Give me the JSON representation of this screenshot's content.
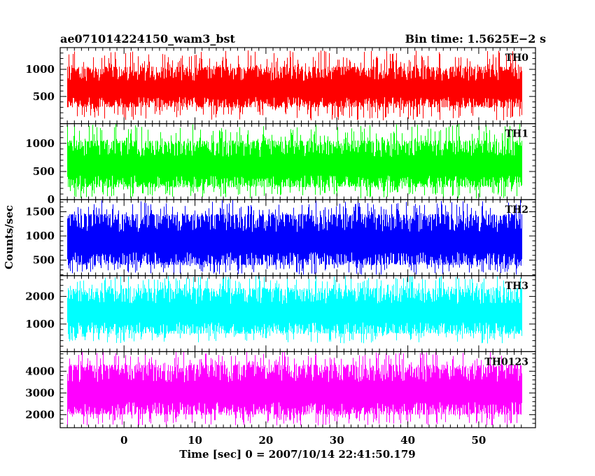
{
  "header": {
    "left_title": "ae071014224150_wam3_bst",
    "right_title": "Bin time: 1.5625E−2 s"
  },
  "chart_data": {
    "type": "line",
    "title": "ae071014224150_wam3_bst",
    "subtitle": "Bin time: 1.5625E−2 s",
    "xlabel": "Time [sec] 0 = 2007/10/14 22:41:50.179",
    "ylabel": "Counts/sec",
    "xlim": [
      -9,
      58
    ],
    "xticks": [
      0,
      10,
      20,
      30,
      40,
      50
    ],
    "grid": false,
    "panels": [
      {
        "name": "TH0",
        "color": "#ff0000",
        "ylim": [
          0,
          1400
        ],
        "yticks": [
          500,
          1000
        ],
        "signal": {
          "x_start": -8,
          "x_end": 56,
          "typical_low": 300,
          "typical_high": 1050,
          "min": 60,
          "max": 1350
        }
      },
      {
        "name": "TH1",
        "color": "#00ff00",
        "ylim": [
          0,
          1350
        ],
        "yticks": [
          0,
          500,
          1000
        ],
        "signal": {
          "x_start": -8,
          "x_end": 56,
          "typical_low": 220,
          "typical_high": 1050,
          "min": 20,
          "max": 1350
        }
      },
      {
        "name": "TH2",
        "color": "#0000ff",
        "ylim": [
          180,
          1750
        ],
        "yticks": [
          500,
          1000,
          1500
        ],
        "signal": {
          "x_start": -8,
          "x_end": 56,
          "typical_low": 400,
          "typical_high": 1450,
          "min": 200,
          "max": 1750
        }
      },
      {
        "name": "TH3",
        "color": "#00ffff",
        "ylim": [
          0,
          2750
        ],
        "yticks": [
          1000,
          2000
        ],
        "signal": {
          "x_start": -8,
          "x_end": 56,
          "typical_low": 650,
          "typical_high": 2300,
          "min": 300,
          "max": 2750
        }
      },
      {
        "name": "TH0123",
        "color": "#ff00ff",
        "ylim": [
          1400,
          4900
        ],
        "yticks": [
          2000,
          3000,
          4000
        ],
        "signal": {
          "x_start": -8,
          "x_end": 56,
          "typical_low": 2000,
          "typical_high": 4300,
          "min": 1500,
          "max": 4900
        }
      }
    ]
  }
}
